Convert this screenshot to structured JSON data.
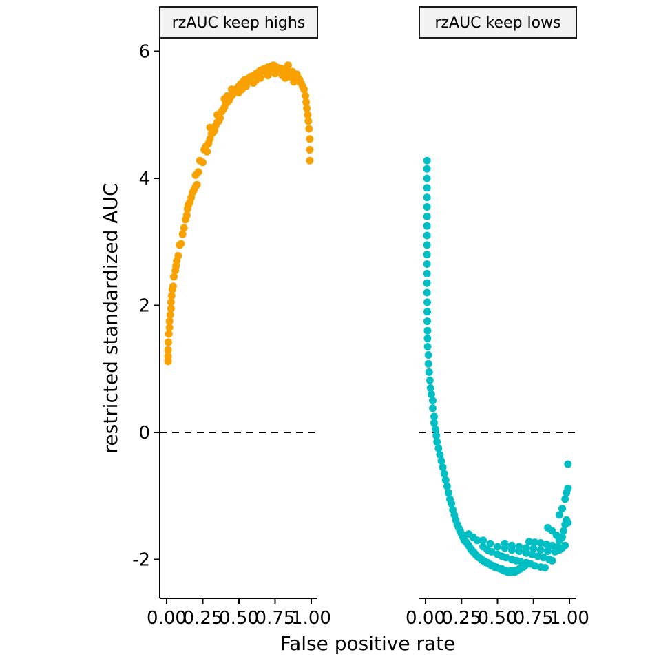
{
  "chart_data": {
    "type": "scatter",
    "xlabel": "False positive rate",
    "ylabel": "restricted standardized AUC",
    "xlim": [
      0,
      1
    ],
    "ylim": [
      -2.6,
      6.2
    ],
    "x_ticks": [
      "0.00",
      "0.25",
      "0.50",
      "0.75",
      "1.00"
    ],
    "y_ticks": [
      "-2",
      "0",
      "2",
      "4",
      "6"
    ],
    "reference_line": {
      "y": 0,
      "style": "dashed"
    },
    "grid": false,
    "legend": "none",
    "panels": [
      {
        "strip_label": "rzAUC keep highs",
        "color": "#F8A100",
        "points": [
          [
            0.01,
            1.12
          ],
          [
            0.01,
            1.2
          ],
          [
            0.01,
            1.3
          ],
          [
            0.012,
            1.42
          ],
          [
            0.015,
            1.55
          ],
          [
            0.02,
            1.65
          ],
          [
            0.02,
            1.75
          ],
          [
            0.025,
            1.85
          ],
          [
            0.03,
            1.95
          ],
          [
            0.03,
            2.05
          ],
          [
            0.035,
            2.15
          ],
          [
            0.04,
            2.25
          ],
          [
            0.045,
            2.3
          ],
          [
            0.05,
            2.45
          ],
          [
            0.06,
            2.55
          ],
          [
            0.065,
            2.62
          ],
          [
            0.07,
            2.7
          ],
          [
            0.08,
            2.78
          ],
          [
            0.09,
            2.95
          ],
          [
            0.1,
            2.97
          ],
          [
            0.11,
            3.12
          ],
          [
            0.12,
            3.22
          ],
          [
            0.13,
            3.35
          ],
          [
            0.14,
            3.42
          ],
          [
            0.145,
            3.52
          ],
          [
            0.15,
            3.58
          ],
          [
            0.16,
            3.62
          ],
          [
            0.17,
            3.7
          ],
          [
            0.18,
            3.78
          ],
          [
            0.19,
            3.82
          ],
          [
            0.2,
            3.87
          ],
          [
            0.21,
            3.9
          ],
          [
            0.2,
            4.05
          ],
          [
            0.22,
            4.1
          ],
          [
            0.23,
            4.28
          ],
          [
            0.25,
            4.25
          ],
          [
            0.26,
            4.45
          ],
          [
            0.27,
            4.5
          ],
          [
            0.28,
            4.42
          ],
          [
            0.29,
            4.55
          ],
          [
            0.3,
            4.62
          ],
          [
            0.31,
            4.7
          ],
          [
            0.32,
            4.72
          ],
          [
            0.33,
            4.75
          ],
          [
            0.34,
            4.83
          ],
          [
            0.35,
            4.88
          ],
          [
            0.36,
            4.9
          ],
          [
            0.37,
            4.95
          ],
          [
            0.38,
            5.05
          ],
          [
            0.39,
            5.08
          ],
          [
            0.4,
            5.12
          ],
          [
            0.41,
            5.18
          ],
          [
            0.42,
            5.2
          ],
          [
            0.43,
            5.22
          ],
          [
            0.44,
            5.27
          ],
          [
            0.45,
            5.3
          ],
          [
            0.46,
            5.33
          ],
          [
            0.47,
            5.36
          ],
          [
            0.48,
            5.4
          ],
          [
            0.49,
            5.42
          ],
          [
            0.5,
            5.45
          ],
          [
            0.51,
            5.48
          ],
          [
            0.52,
            5.5
          ],
          [
            0.53,
            5.52
          ],
          [
            0.54,
            5.55
          ],
          [
            0.55,
            5.5
          ],
          [
            0.56,
            5.56
          ],
          [
            0.57,
            5.58
          ],
          [
            0.58,
            5.6
          ],
          [
            0.59,
            5.55
          ],
          [
            0.6,
            5.62
          ],
          [
            0.61,
            5.6
          ],
          [
            0.62,
            5.65
          ],
          [
            0.63,
            5.62
          ],
          [
            0.64,
            5.68
          ],
          [
            0.65,
            5.7
          ],
          [
            0.66,
            5.68
          ],
          [
            0.67,
            5.72
          ],
          [
            0.68,
            5.7
          ],
          [
            0.69,
            5.73
          ],
          [
            0.7,
            5.75
          ],
          [
            0.71,
            5.74
          ],
          [
            0.72,
            5.76
          ],
          [
            0.73,
            5.77
          ],
          [
            0.74,
            5.78
          ],
          [
            0.75,
            5.76
          ],
          [
            0.76,
            5.75
          ],
          [
            0.77,
            5.74
          ],
          [
            0.78,
            5.72
          ],
          [
            0.79,
            5.73
          ],
          [
            0.8,
            5.7
          ],
          [
            0.81,
            5.68
          ],
          [
            0.82,
            5.72
          ],
          [
            0.83,
            5.7
          ],
          [
            0.84,
            5.78
          ],
          [
            0.85,
            5.66
          ],
          [
            0.86,
            5.65
          ],
          [
            0.87,
            5.68
          ],
          [
            0.88,
            5.62
          ],
          [
            0.89,
            5.6
          ],
          [
            0.9,
            5.64
          ],
          [
            0.91,
            5.58
          ],
          [
            0.92,
            5.55
          ],
          [
            0.93,
            5.5
          ],
          [
            0.94,
            5.45
          ],
          [
            0.95,
            5.4
          ],
          [
            0.96,
            5.3
          ],
          [
            0.965,
            5.2
          ],
          [
            0.97,
            5.1
          ],
          [
            0.975,
            5.0
          ],
          [
            0.98,
            4.9
          ],
          [
            0.985,
            4.78
          ],
          [
            0.99,
            4.62
          ],
          [
            0.99,
            4.45
          ],
          [
            0.99,
            4.28
          ],
          [
            0.4,
            5.25
          ],
          [
            0.45,
            5.4
          ],
          [
            0.5,
            5.35
          ],
          [
            0.55,
            5.45
          ],
          [
            0.6,
            5.5
          ],
          [
            0.65,
            5.58
          ],
          [
            0.7,
            5.62
          ],
          [
            0.75,
            5.65
          ],
          [
            0.8,
            5.62
          ],
          [
            0.85,
            5.6
          ],
          [
            0.9,
            5.55
          ],
          [
            0.35,
            5.0
          ],
          [
            0.3,
            4.8
          ],
          [
            0.42,
            5.3
          ],
          [
            0.52,
            5.4
          ],
          [
            0.62,
            5.55
          ],
          [
            0.72,
            5.68
          ],
          [
            0.82,
            5.58
          ],
          [
            0.88,
            5.52
          ]
        ]
      },
      {
        "strip_label": "rzAUC keep lows",
        "color": "#00BFC4",
        "points": [
          [
            0.01,
            4.28
          ],
          [
            0.01,
            4.15
          ],
          [
            0.01,
            4.0
          ],
          [
            0.01,
            3.85
          ],
          [
            0.01,
            3.7
          ],
          [
            0.01,
            3.55
          ],
          [
            0.01,
            3.4
          ],
          [
            0.01,
            3.25
          ],
          [
            0.01,
            3.1
          ],
          [
            0.01,
            2.95
          ],
          [
            0.01,
            2.8
          ],
          [
            0.01,
            2.65
          ],
          [
            0.01,
            2.5
          ],
          [
            0.01,
            2.35
          ],
          [
            0.01,
            2.2
          ],
          [
            0.012,
            2.05
          ],
          [
            0.012,
            1.9
          ],
          [
            0.012,
            1.75
          ],
          [
            0.014,
            1.6
          ],
          [
            0.014,
            1.48
          ],
          [
            0.015,
            1.35
          ],
          [
            0.02,
            1.22
          ],
          [
            0.02,
            1.08
          ],
          [
            0.025,
            0.95
          ],
          [
            0.03,
            0.82
          ],
          [
            0.035,
            0.7
          ],
          [
            0.04,
            0.6
          ],
          [
            0.05,
            0.5
          ],
          [
            0.05,
            0.38
          ],
          [
            0.06,
            0.25
          ],
          [
            0.06,
            0.15
          ],
          [
            0.07,
            0.05
          ],
          [
            0.075,
            -0.05
          ],
          [
            0.08,
            -0.15
          ],
          [
            0.09,
            -0.25
          ],
          [
            0.1,
            -0.35
          ],
          [
            0.11,
            -0.45
          ],
          [
            0.12,
            -0.55
          ],
          [
            0.13,
            -0.65
          ],
          [
            0.14,
            -0.75
          ],
          [
            0.15,
            -0.85
          ],
          [
            0.16,
            -0.95
          ],
          [
            0.17,
            -1.05
          ],
          [
            0.18,
            -1.12
          ],
          [
            0.19,
            -1.22
          ],
          [
            0.2,
            -1.3
          ],
          [
            0.21,
            -1.38
          ],
          [
            0.22,
            -1.45
          ],
          [
            0.23,
            -1.5
          ],
          [
            0.24,
            -1.55
          ],
          [
            0.25,
            -1.6
          ],
          [
            0.26,
            -1.65
          ],
          [
            0.27,
            -1.7
          ],
          [
            0.28,
            -1.72
          ],
          [
            0.29,
            -1.75
          ],
          [
            0.3,
            -1.78
          ],
          [
            0.31,
            -1.82
          ],
          [
            0.32,
            -1.85
          ],
          [
            0.33,
            -1.88
          ],
          [
            0.34,
            -1.9
          ],
          [
            0.35,
            -1.93
          ],
          [
            0.36,
            -1.95
          ],
          [
            0.37,
            -1.97
          ],
          [
            0.38,
            -1.98
          ],
          [
            0.39,
            -2.0
          ],
          [
            0.4,
            -2.02
          ],
          [
            0.41,
            -2.03
          ],
          [
            0.42,
            -2.05
          ],
          [
            0.43,
            -2.05
          ],
          [
            0.44,
            -2.07
          ],
          [
            0.45,
            -2.08
          ],
          [
            0.46,
            -2.1
          ],
          [
            0.47,
            -2.1
          ],
          [
            0.48,
            -2.12
          ],
          [
            0.49,
            -2.12
          ],
          [
            0.5,
            -2.13
          ],
          [
            0.51,
            -2.14
          ],
          [
            0.52,
            -2.15
          ],
          [
            0.53,
            -2.15
          ],
          [
            0.54,
            -2.17
          ],
          [
            0.55,
            -2.18
          ],
          [
            0.56,
            -2.18
          ],
          [
            0.57,
            -2.2
          ],
          [
            0.58,
            -2.2
          ],
          [
            0.59,
            -2.18
          ],
          [
            0.6,
            -2.2
          ],
          [
            0.61,
            -2.18
          ],
          [
            0.62,
            -2.2
          ],
          [
            0.63,
            -2.18
          ],
          [
            0.64,
            -2.17
          ],
          [
            0.65,
            -2.15
          ],
          [
            0.66,
            -2.15
          ],
          [
            0.67,
            -2.12
          ],
          [
            0.68,
            -2.12
          ],
          [
            0.69,
            -2.1
          ],
          [
            0.7,
            -2.08
          ],
          [
            0.3,
            -1.6
          ],
          [
            0.33,
            -1.65
          ],
          [
            0.36,
            -1.7
          ],
          [
            0.4,
            -1.8
          ],
          [
            0.43,
            -1.85
          ],
          [
            0.46,
            -1.88
          ],
          [
            0.5,
            -1.92
          ],
          [
            0.53,
            -1.95
          ],
          [
            0.56,
            -1.97
          ],
          [
            0.6,
            -2.0
          ],
          [
            0.63,
            -2.02
          ],
          [
            0.66,
            -2.03
          ],
          [
            0.7,
            -2.05
          ],
          [
            0.73,
            -2.07
          ],
          [
            0.76,
            -2.1
          ],
          [
            0.8,
            -2.12
          ],
          [
            0.83,
            -2.13
          ],
          [
            0.4,
            -1.7
          ],
          [
            0.45,
            -1.75
          ],
          [
            0.5,
            -1.8
          ],
          [
            0.55,
            -1.82
          ],
          [
            0.6,
            -1.85
          ],
          [
            0.65,
            -1.87
          ],
          [
            0.7,
            -1.9
          ],
          [
            0.74,
            -1.92
          ],
          [
            0.78,
            -1.95
          ],
          [
            0.82,
            -1.97
          ],
          [
            0.86,
            -2.0
          ],
          [
            0.88,
            -2.02
          ],
          [
            0.55,
            -1.75
          ],
          [
            0.6,
            -1.78
          ],
          [
            0.65,
            -1.8
          ],
          [
            0.7,
            -1.82
          ],
          [
            0.75,
            -1.83
          ],
          [
            0.8,
            -1.85
          ],
          [
            0.85,
            -1.87
          ],
          [
            0.9,
            -1.88
          ],
          [
            0.93,
            -1.85
          ],
          [
            0.72,
            -1.72
          ],
          [
            0.76,
            -1.73
          ],
          [
            0.8,
            -1.74
          ],
          [
            0.84,
            -1.76
          ],
          [
            0.88,
            -1.78
          ],
          [
            0.92,
            -1.8
          ],
          [
            0.95,
            -1.82
          ],
          [
            0.97,
            -1.78
          ],
          [
            0.85,
            -1.5
          ],
          [
            0.88,
            -1.55
          ],
          [
            0.91,
            -1.62
          ],
          [
            0.93,
            -1.7
          ],
          [
            0.95,
            -1.65
          ],
          [
            0.96,
            -1.55
          ],
          [
            0.97,
            -1.45
          ],
          [
            0.98,
            -1.38
          ],
          [
            0.99,
            -1.42
          ],
          [
            0.93,
            -1.3
          ],
          [
            0.95,
            -1.2
          ],
          [
            0.97,
            -1.05
          ],
          [
            0.98,
            -0.95
          ],
          [
            0.99,
            -0.88
          ],
          [
            0.99,
            -0.5
          ]
        ]
      }
    ]
  }
}
